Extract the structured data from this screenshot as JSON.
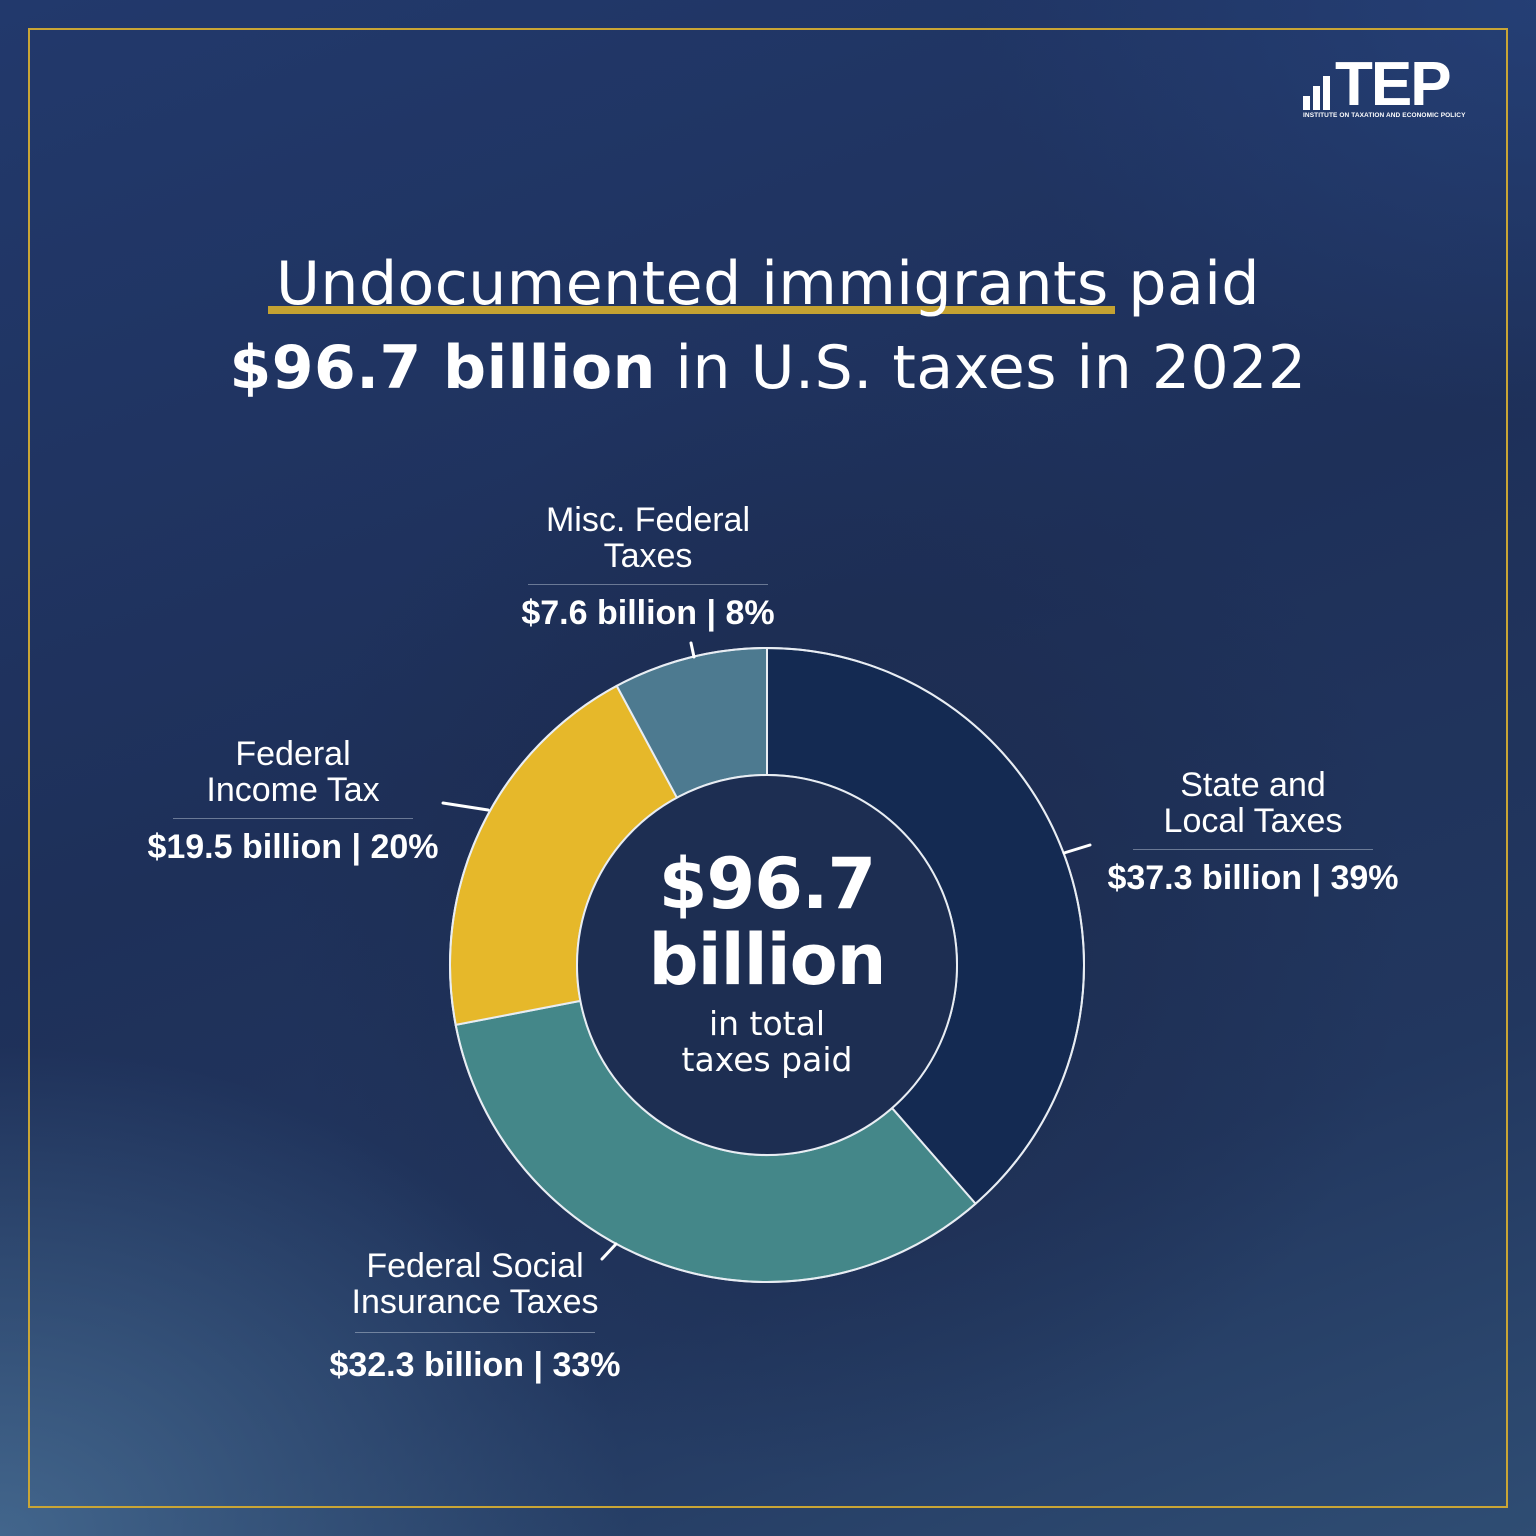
{
  "logo": {
    "wordmark": "TEP",
    "subtitle": "INSTITUTE ON TAXATION AND ECONOMIC POLICY"
  },
  "title": {
    "line1_highlight": "Undocumented immigrants",
    "line1_rest": " paid",
    "line2_bold": "$96.7 billion",
    "line2_rest": " in U.S. taxes in 2022"
  },
  "center": {
    "amount": "$96.7",
    "unit": "billion",
    "caption_line1": "in total",
    "caption_line2": "taxes paid"
  },
  "colors": {
    "state_local": "#142a52",
    "social_insurance": "#448789",
    "income": "#e6b82a",
    "misc": "#4d7a90",
    "accent_gold": "#c9a535"
  },
  "labels": {
    "state_local": {
      "name_line1": "State and",
      "name_line2": "Local Taxes",
      "value": "$37.3 billion | 39%"
    },
    "social_insurance": {
      "name_line1": "Federal Social",
      "name_line2": "Insurance Taxes",
      "value": "$32.3 billion | 33%"
    },
    "income": {
      "name_line1": "Federal",
      "name_line2": "Income Tax",
      "value": "$19.5 billion | 20%"
    },
    "misc": {
      "name_line1": "Misc. Federal",
      "name_line2": "Taxes",
      "value": "$7.6 billion | 8%"
    }
  },
  "chart_data": {
    "type": "pie",
    "subtype": "donut",
    "title": "Undocumented immigrants paid $96.7 billion in U.S. taxes in 2022",
    "center_label": "$96.7 billion in total taxes paid",
    "unit": "billion USD",
    "total": 96.7,
    "categories": [
      "State and Local Taxes",
      "Federal Social Insurance Taxes",
      "Federal Income Tax",
      "Misc. Federal Taxes"
    ],
    "values": [
      37.3,
      32.3,
      19.5,
      7.6
    ],
    "percentages": [
      39,
      33,
      20,
      8
    ],
    "colors": [
      "#142a52",
      "#448789",
      "#e6b82a",
      "#4d7a90"
    ],
    "start_angle": "12 o'clock, clockwise",
    "legend": "direct labels with leader lines"
  }
}
